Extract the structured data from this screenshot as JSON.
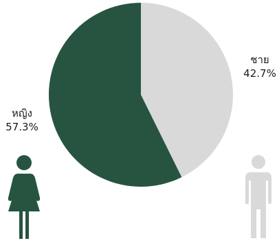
{
  "chart_data": {
    "type": "pie",
    "slices": [
      {
        "label": "ชาย",
        "value": 42.7,
        "display": "42.7%",
        "color": "#d9d9d9"
      },
      {
        "label": "หญิง",
        "value": 57.3,
        "display": "57.3%",
        "color": "#265441"
      }
    ],
    "start_angle": "top, clockwise"
  },
  "icons": {
    "female": {
      "name": "female-person-icon",
      "color": "#265441"
    },
    "male": {
      "name": "male-person-icon",
      "color": "#d9d9d9"
    }
  }
}
